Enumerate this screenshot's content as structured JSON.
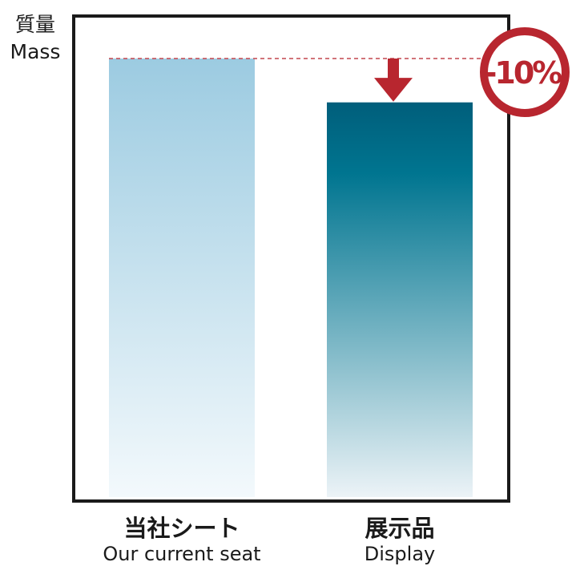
{
  "chart_data": {
    "type": "bar",
    "categories": [
      "当社シート",
      "展示品"
    ],
    "category_subtitles": [
      "Our current seat",
      "Display"
    ],
    "values": [
      100,
      90
    ],
    "ylabel": "質量",
    "ylabel_en": "Mass",
    "ylim": [
      0,
      100
    ],
    "grid": false,
    "reference_line": {
      "value": 100,
      "style": "dashed",
      "color": "#c4464f"
    },
    "annotation": {
      "text": "-10%",
      "type": "reduction-badge",
      "color": "#b8262f"
    },
    "colors": {
      "bar_current_top": "#9ccbe1",
      "bar_current_bottom": "#f3f9fc",
      "bar_display_top": "#005e7b",
      "bar_display_bottom": "#ecf3f7",
      "frame": "#1a1a1a",
      "arrow": "#b8262f"
    }
  }
}
